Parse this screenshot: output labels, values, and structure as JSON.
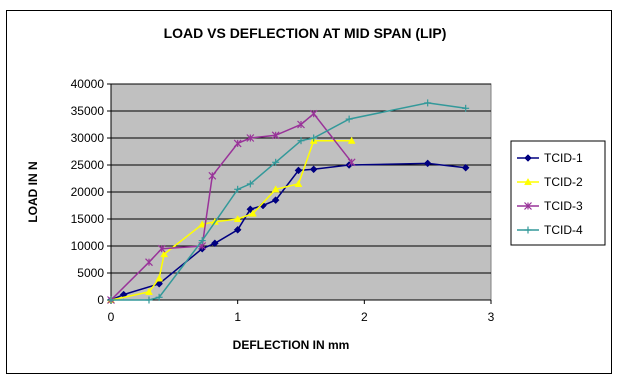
{
  "chart_data": {
    "type": "line",
    "title": "LOAD VS DEFLECTION AT MID SPAN (LIP)",
    "xlabel": "DEFLECTION IN mm",
    "ylabel": "LOAD IN N",
    "xlim": [
      0,
      3
    ],
    "ylim": [
      0,
      40000
    ],
    "x_ticks": [
      "0",
      "1",
      "2",
      "3"
    ],
    "y_ticks": [
      "0",
      "5000",
      "10000",
      "15000",
      "20000",
      "25000",
      "30000",
      "35000",
      "40000"
    ],
    "grid": "horizontal",
    "plot_background": "#c0c0c0",
    "legend_position": "right",
    "series": [
      {
        "name": "TCID-1",
        "color": "#000080",
        "marker": "diamond",
        "points": [
          [
            0,
            0
          ],
          [
            0.1,
            1000
          ],
          [
            0.38,
            3000
          ],
          [
            0.72,
            9500
          ],
          [
            0.82,
            10500
          ],
          [
            1.0,
            13000
          ],
          [
            1.1,
            16800
          ],
          [
            1.2,
            17500
          ],
          [
            1.3,
            18500
          ],
          [
            1.48,
            24000
          ],
          [
            1.6,
            24200
          ],
          [
            1.88,
            25000
          ],
          [
            2.5,
            25300
          ],
          [
            2.8,
            24500
          ]
        ]
      },
      {
        "name": "TCID-2",
        "color": "#ffff00",
        "marker": "triangle",
        "points": [
          [
            0,
            0
          ],
          [
            0.3,
            1500
          ],
          [
            0.38,
            4000
          ],
          [
            0.42,
            8500
          ],
          [
            0.72,
            14000
          ],
          [
            0.82,
            14500
          ],
          [
            1.0,
            15000
          ],
          [
            1.12,
            16000
          ],
          [
            1.3,
            20500
          ],
          [
            1.48,
            21500
          ],
          [
            1.6,
            29500
          ],
          [
            1.9,
            29500
          ]
        ]
      },
      {
        "name": "TCID-3",
        "color": "#993399",
        "marker": "star",
        "points": [
          [
            0,
            0
          ],
          [
            0.3,
            7000
          ],
          [
            0.4,
            9500
          ],
          [
            0.72,
            10000
          ],
          [
            0.8,
            23000
          ],
          [
            1.0,
            29000
          ],
          [
            1.1,
            30000
          ],
          [
            1.3,
            30500
          ],
          [
            1.5,
            32500
          ],
          [
            1.6,
            34500
          ],
          [
            1.9,
            25500
          ]
        ]
      },
      {
        "name": "TCID-4",
        "color": "#33999a",
        "marker": "plus",
        "points": [
          [
            0,
            0
          ],
          [
            0.3,
            0
          ],
          [
            0.38,
            500
          ],
          [
            0.72,
            11000
          ],
          [
            1.0,
            20500
          ],
          [
            1.1,
            21500
          ],
          [
            1.3,
            25500
          ],
          [
            1.5,
            29500
          ],
          [
            1.6,
            30000
          ],
          [
            1.88,
            33500
          ],
          [
            2.5,
            36500
          ],
          [
            2.8,
            35500
          ]
        ]
      }
    ]
  }
}
